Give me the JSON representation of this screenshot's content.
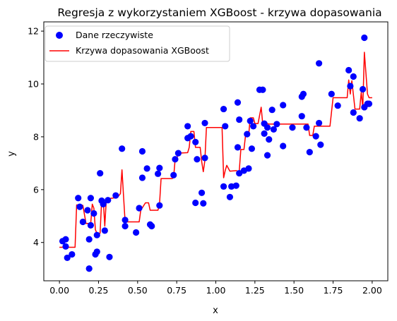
{
  "chart_data": {
    "type": "scatter",
    "title": "Regresja z wykorzystaniem XGBoost - krzywa dopasowania",
    "xlabel": "x",
    "ylabel": "y",
    "xlim": [
      -0.1,
      2.1
    ],
    "ylim": [
      2.55,
      12.35
    ],
    "xticks": [
      "0.00",
      "0.25",
      "0.50",
      "0.75",
      "1.00",
      "1.25",
      "1.50",
      "1.75",
      "2.00"
    ],
    "yticks": [
      "4",
      "6",
      "8",
      "10",
      "12"
    ],
    "grid": false,
    "legend": {
      "position": "top-left",
      "entries": [
        "Dane rzeczywiste",
        "Krzywa dopasowania XGBoost"
      ]
    },
    "colors": {
      "points": "#0000ff",
      "curve": "#ff0000"
    },
    "series": [
      {
        "name": "Dane rzeczywiste",
        "type": "scatter",
        "points": [
          [
            0.02,
            4.05
          ],
          [
            0.04,
            3.85
          ],
          [
            0.04,
            4.12
          ],
          [
            0.05,
            3.42
          ],
          [
            0.08,
            3.55
          ],
          [
            0.12,
            5.68
          ],
          [
            0.13,
            5.35
          ],
          [
            0.15,
            4.78
          ],
          [
            0.18,
            5.22
          ],
          [
            0.19,
            3.01
          ],
          [
            0.19,
            4.12
          ],
          [
            0.2,
            5.68
          ],
          [
            0.2,
            4.65
          ],
          [
            0.22,
            5.1
          ],
          [
            0.23,
            3.55
          ],
          [
            0.24,
            4.28
          ],
          [
            0.24,
            3.65
          ],
          [
            0.26,
            6.62
          ],
          [
            0.27,
            5.58
          ],
          [
            0.28,
            5.45
          ],
          [
            0.29,
            4.45
          ],
          [
            0.31,
            5.6
          ],
          [
            0.32,
            3.45
          ],
          [
            0.36,
            5.78
          ],
          [
            0.4,
            7.55
          ],
          [
            0.42,
            4.62
          ],
          [
            0.42,
            4.85
          ],
          [
            0.49,
            4.38
          ],
          [
            0.51,
            5.3
          ],
          [
            0.53,
            6.45
          ],
          [
            0.53,
            7.45
          ],
          [
            0.56,
            6.8
          ],
          [
            0.58,
            4.68
          ],
          [
            0.59,
            4.62
          ],
          [
            0.63,
            6.6
          ],
          [
            0.64,
            6.82
          ],
          [
            0.64,
            5.4
          ],
          [
            0.73,
            6.55
          ],
          [
            0.74,
            7.15
          ],
          [
            0.76,
            7.38
          ],
          [
            0.82,
            7.95
          ],
          [
            0.82,
            8.4
          ],
          [
            0.84,
            8.02
          ],
          [
            0.87,
            7.8
          ],
          [
            0.87,
            5.5
          ],
          [
            0.88,
            7.15
          ],
          [
            0.91,
            5.88
          ],
          [
            0.92,
            5.48
          ],
          [
            0.93,
            7.2
          ],
          [
            0.93,
            8.52
          ],
          [
            1.05,
            9.05
          ],
          [
            1.05,
            6.12
          ],
          [
            1.06,
            8.4
          ],
          [
            1.09,
            5.72
          ],
          [
            1.1,
            6.12
          ],
          [
            1.13,
            6.15
          ],
          [
            1.14,
            7.6
          ],
          [
            1.15,
            6.62
          ],
          [
            1.15,
            8.65
          ],
          [
            1.14,
            9.3
          ],
          [
            1.18,
            6.72
          ],
          [
            1.2,
            8.1
          ],
          [
            1.21,
            6.8
          ],
          [
            1.22,
            8.6
          ],
          [
            1.23,
            7.55
          ],
          [
            1.24,
            8.4
          ],
          [
            1.28,
            9.78
          ],
          [
            1.3,
            9.78
          ],
          [
            1.31,
            8.5
          ],
          [
            1.31,
            8.12
          ],
          [
            1.33,
            7.3
          ],
          [
            1.33,
            8.35
          ],
          [
            1.34,
            7.9
          ],
          [
            1.36,
            9.02
          ],
          [
            1.37,
            8.28
          ],
          [
            1.39,
            8.48
          ],
          [
            1.43,
            9.2
          ],
          [
            1.43,
            7.65
          ],
          [
            1.49,
            8.35
          ],
          [
            1.55,
            8.78
          ],
          [
            1.55,
            9.52
          ],
          [
            1.56,
            9.62
          ],
          [
            1.58,
            8.35
          ],
          [
            1.6,
            7.42
          ],
          [
            1.64,
            8.02
          ],
          [
            1.66,
            10.78
          ],
          [
            1.66,
            8.52
          ],
          [
            1.67,
            7.7
          ],
          [
            1.74,
            9.62
          ],
          [
            1.78,
            9.18
          ],
          [
            1.85,
            10.52
          ],
          [
            1.86,
            9.92
          ],
          [
            1.88,
            10.28
          ],
          [
            1.88,
            8.92
          ],
          [
            1.92,
            8.7
          ],
          [
            1.94,
            9.8
          ],
          [
            1.95,
            11.75
          ],
          [
            1.95,
            9.12
          ],
          [
            1.97,
            9.25
          ],
          [
            1.98,
            9.25
          ]
        ]
      },
      {
        "name": "Krzywa dopasowania XGBoost",
        "type": "line",
        "points": [
          [
            0.0,
            3.82
          ],
          [
            0.05,
            3.82
          ],
          [
            0.1,
            3.82
          ],
          [
            0.11,
            5.42
          ],
          [
            0.14,
            5.42
          ],
          [
            0.15,
            5.4
          ],
          [
            0.17,
            4.72
          ],
          [
            0.2,
            4.72
          ],
          [
            0.21,
            5.45
          ],
          [
            0.22,
            5.3
          ],
          [
            0.23,
            4.48
          ],
          [
            0.24,
            4.35
          ],
          [
            0.26,
            4.35
          ],
          [
            0.27,
            5.6
          ],
          [
            0.28,
            5.65
          ],
          [
            0.29,
            4.62
          ],
          [
            0.3,
            5.65
          ],
          [
            0.37,
            5.7
          ],
          [
            0.39,
            5.85
          ],
          [
            0.4,
            6.75
          ],
          [
            0.41,
            5.75
          ],
          [
            0.42,
            4.78
          ],
          [
            0.49,
            4.78
          ],
          [
            0.5,
            4.78
          ],
          [
            0.51,
            4.78
          ],
          [
            0.52,
            5.22
          ],
          [
            0.55,
            5.5
          ],
          [
            0.57,
            5.5
          ],
          [
            0.58,
            5.22
          ],
          [
            0.63,
            5.22
          ],
          [
            0.64,
            5.45
          ],
          [
            0.65,
            6.42
          ],
          [
            0.72,
            6.42
          ],
          [
            0.73,
            6.45
          ],
          [
            0.74,
            7.15
          ],
          [
            0.75,
            7.15
          ],
          [
            0.76,
            7.38
          ],
          [
            0.82,
            7.4
          ],
          [
            0.83,
            7.6
          ],
          [
            0.84,
            8.2
          ],
          [
            0.86,
            8.2
          ],
          [
            0.87,
            7.6
          ],
          [
            0.9,
            7.6
          ],
          [
            0.91,
            7.05
          ],
          [
            0.92,
            6.68
          ],
          [
            0.93,
            7.1
          ],
          [
            0.94,
            8.35
          ],
          [
            0.99,
            8.35
          ],
          [
            1.04,
            8.35
          ],
          [
            1.05,
            6.45
          ],
          [
            1.06,
            6.72
          ],
          [
            1.07,
            6.92
          ],
          [
            1.09,
            6.7
          ],
          [
            1.13,
            6.72
          ],
          [
            1.14,
            6.7
          ],
          [
            1.15,
            6.7
          ],
          [
            1.16,
            7.52
          ],
          [
            1.18,
            7.52
          ],
          [
            1.19,
            8.05
          ],
          [
            1.21,
            8.05
          ],
          [
            1.22,
            8.72
          ],
          [
            1.24,
            8.72
          ],
          [
            1.25,
            8.5
          ],
          [
            1.27,
            8.5
          ],
          [
            1.29,
            9.12
          ],
          [
            1.3,
            8.5
          ],
          [
            1.33,
            8.5
          ],
          [
            1.34,
            8.48
          ],
          [
            1.49,
            8.48
          ],
          [
            1.59,
            8.48
          ],
          [
            1.6,
            8.05
          ],
          [
            1.62,
            8.05
          ],
          [
            1.63,
            8.4
          ],
          [
            1.7,
            8.4
          ],
          [
            1.73,
            8.4
          ],
          [
            1.75,
            9.48
          ],
          [
            1.84,
            9.48
          ],
          [
            1.85,
            10.15
          ],
          [
            1.86,
            9.62
          ],
          [
            1.87,
            10.12
          ],
          [
            1.89,
            9.05
          ],
          [
            1.92,
            9.05
          ],
          [
            1.93,
            9.68
          ],
          [
            1.94,
            9.1
          ],
          [
            1.95,
            11.2
          ],
          [
            1.97,
            9.62
          ],
          [
            1.98,
            9.48
          ],
          [
            2.0,
            9.48
          ]
        ]
      }
    ]
  }
}
